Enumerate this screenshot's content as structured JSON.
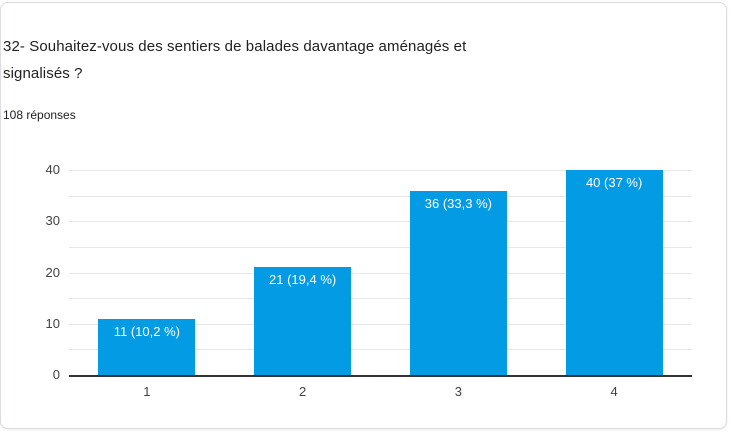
{
  "card": {
    "question_title": "32- Souhaitez-vous des sentiers de balades davantage aménagés et signalisés ?",
    "title_lines": [
      "32- Souhaitez-vous des sentiers de balades davantage aménagés et",
      "signalisés ?"
    ],
    "responses_count": "108 réponses"
  },
  "colors": {
    "bar": "#049be5",
    "bar_label_text": "#ffffff",
    "gridline": "#e7e7e7",
    "baseline": "#333333",
    "axis_text": "#424242",
    "title_text": "#212121",
    "card_border": "#dadce0"
  },
  "chart_data": {
    "type": "bar",
    "title": "32- Souhaitez-vous des sentiers de balades davantage aménagés et signalisés ?",
    "subtitle": "108 réponses",
    "categories": [
      "1",
      "2",
      "3",
      "4"
    ],
    "values": [
      11,
      21,
      36,
      40
    ],
    "bar_labels": [
      "11 (10,2 %)",
      "21 (19,4 %)",
      "36 (33,3 %)",
      "40 (37 %)"
    ],
    "xlabel": "",
    "ylabel": "",
    "ylim": [
      0,
      40
    ],
    "yticks": [
      0,
      10,
      20,
      30,
      40
    ],
    "minor_gridline_step": 5,
    "grid": "horizontal",
    "legend": "none"
  }
}
